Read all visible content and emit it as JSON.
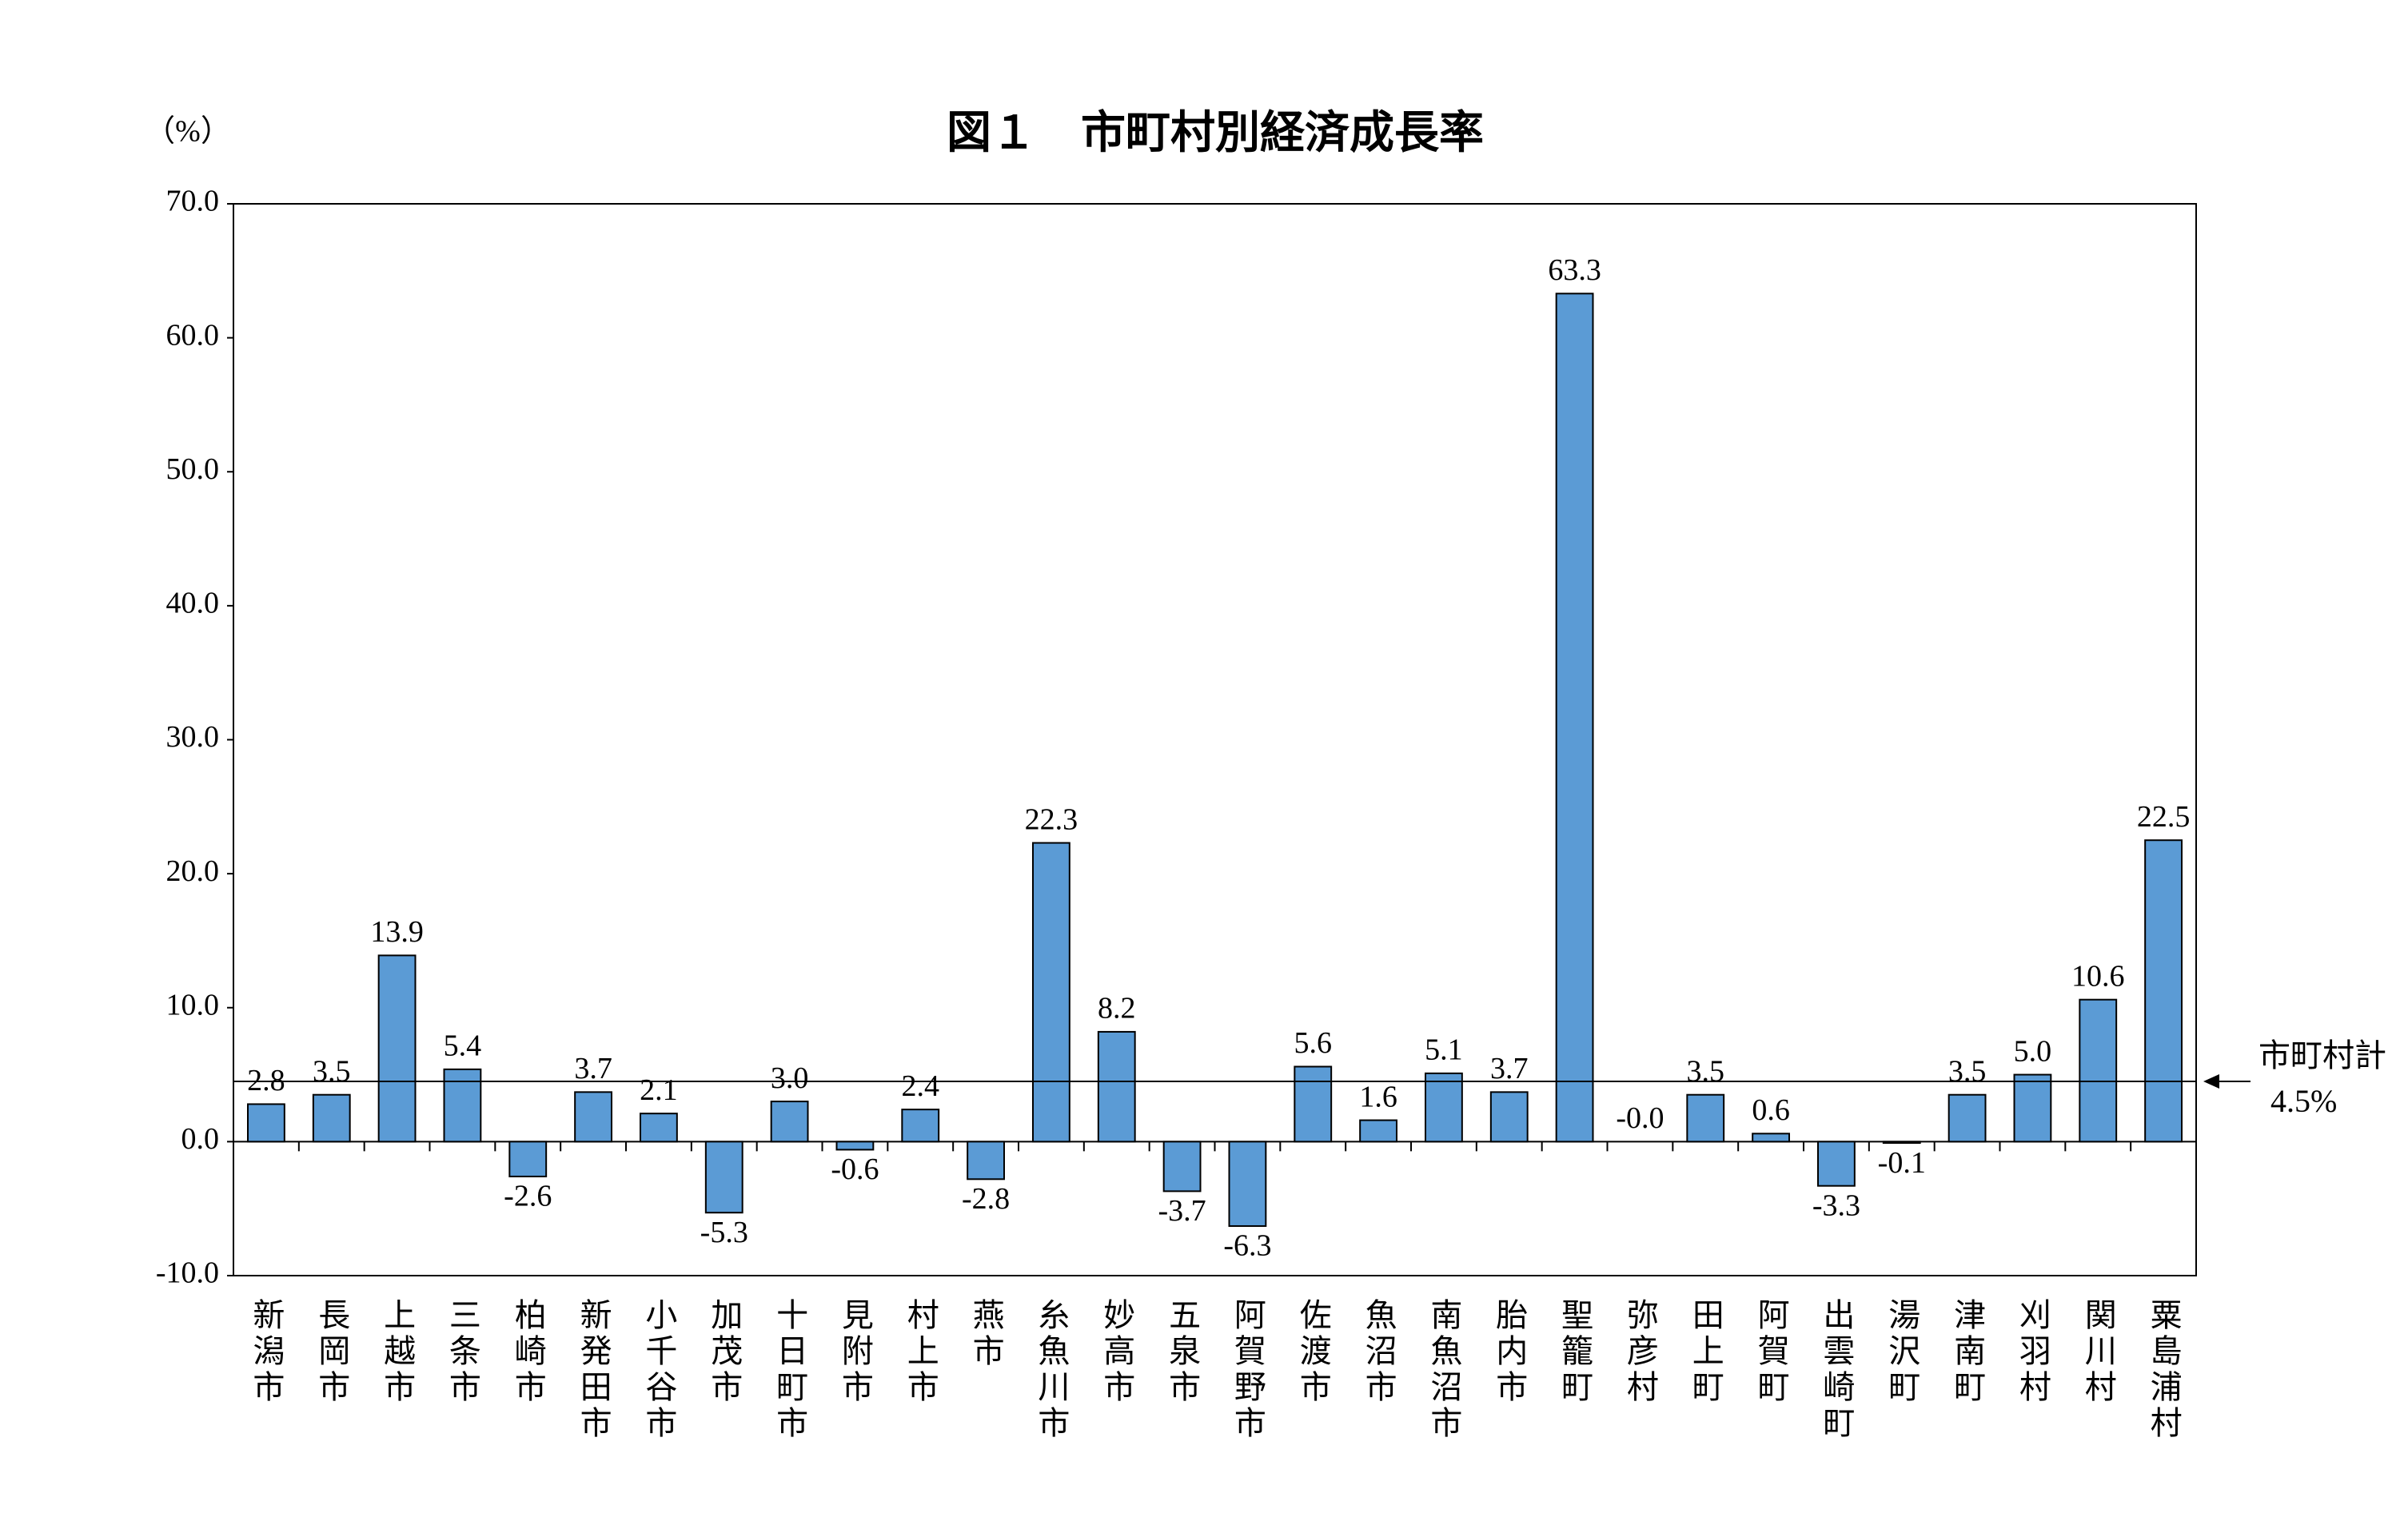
{
  "chart_data": {
    "type": "bar",
    "title": "図１　市町村別経済成長率",
    "y_axis_label": "（%）",
    "categories": [
      "新潟市",
      "長岡市",
      "上越市",
      "三条市",
      "柏崎市",
      "新発田市",
      "小千谷市",
      "加茂市",
      "十日町市",
      "見附市",
      "村上市",
      "燕市",
      "糸魚川市",
      "妙高市",
      "五泉市",
      "阿賀野市",
      "佐渡市",
      "魚沼市",
      "南魚沼市",
      "胎内市",
      "聖籠町",
      "弥彦村",
      "田上町",
      "阿賀町",
      "出雲崎町",
      "湯沢町",
      "津南町",
      "刈羽村",
      "関川村",
      "粟島浦村"
    ],
    "values": [
      2.8,
      3.5,
      13.9,
      5.4,
      -2.6,
      3.7,
      2.1,
      -5.3,
      3.0,
      -0.6,
      2.4,
      -2.8,
      22.3,
      8.2,
      -3.7,
      -6.3,
      5.6,
      1.6,
      5.1,
      3.7,
      63.3,
      0,
      3.5,
      0.6,
      -3.3,
      -0.1,
      3.5,
      5.0,
      10.6,
      22.5
    ],
    "value_labels": [
      "2.8",
      "3.5",
      "13.9",
      "5.4",
      "-2.6",
      "3.7",
      "2.1",
      "-5.3",
      "3.0",
      "-0.6",
      "2.4",
      "-2.8",
      "22.3",
      "8.2",
      "-3.7",
      "-6.3",
      "5.6",
      "1.6",
      "5.1",
      "3.7",
      "63.3",
      "-0.0",
      "3.5",
      "0.6",
      "-3.3",
      "-0.1",
      "3.5",
      "5.0",
      "10.6",
      "22.5"
    ],
    "color": "#5b9bd5",
    "ylim": [
      -10,
      70
    ],
    "yticks": [
      {
        "value": -10,
        "label": "-10.0"
      },
      {
        "value": 0,
        "label": "0.0"
      },
      {
        "value": 10,
        "label": "10.0"
      },
      {
        "value": 20,
        "label": "20.0"
      },
      {
        "value": 30,
        "label": "30.0"
      },
      {
        "value": 40,
        "label": "40.0"
      },
      {
        "value": 50,
        "label": "50.0"
      },
      {
        "value": 60,
        "label": "60.0"
      },
      {
        "value": 70,
        "label": "70.0"
      }
    ],
    "grid": false,
    "reference_line": {
      "value": 4.5,
      "label": "市町村計",
      "value_label": "4.5%"
    }
  }
}
